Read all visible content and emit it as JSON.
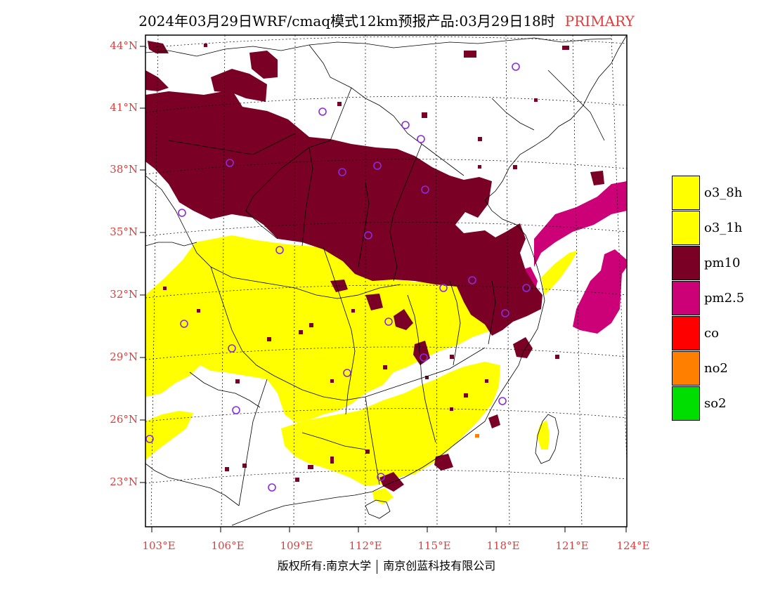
{
  "title": "2024年03月29日WRF/cmaq模式12km预报产品:03月29日18时",
  "title_tag": "PRIMARY",
  "lat_labels": [
    "44°N",
    "41°N",
    "38°N",
    "35°N",
    "32°N",
    "29°N",
    "26°N",
    "23°N"
  ],
  "lon_labels": [
    "103°E",
    "106°E",
    "109°E",
    "112°E",
    "115°E",
    "118°E",
    "121°E",
    "124°E"
  ],
  "legend": [
    {
      "label": "o3_8h",
      "color": "#ffff00"
    },
    {
      "label": "o3_1h",
      "color": "#ffff00"
    },
    {
      "label": "pm10",
      "color": "#7a0026"
    },
    {
      "label": "pm2.5",
      "color": "#cc0077"
    },
    {
      "label": "co",
      "color": "#ff0000"
    },
    {
      "label": "no2",
      "color": "#ff7f00"
    },
    {
      "label": "so2",
      "color": "#00dd00"
    }
  ],
  "copyright_left": "版权所有:南京大学",
  "copyright_right": "南京创蓝科技有限公司",
  "colors": {
    "accent": "#e23b3b",
    "station": "#8a2be2",
    "o3": "#ffff00",
    "pm10": "#7a0026",
    "pm25": "#cc0077"
  }
}
